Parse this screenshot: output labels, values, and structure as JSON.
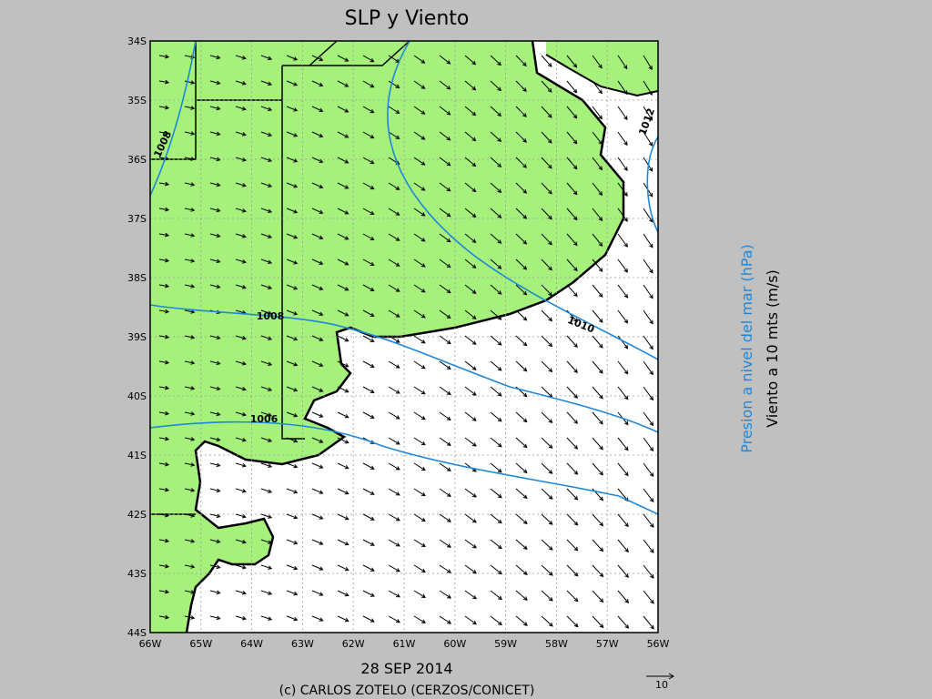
{
  "header": {
    "title": "SLP y Viento"
  },
  "map": {
    "lat_labels": [
      "34S",
      "35S",
      "36S",
      "37S",
      "38S",
      "39S",
      "40S",
      "41S",
      "42S",
      "43S",
      "44S"
    ],
    "lon_labels": [
      "66W",
      "65W",
      "64W",
      "63W",
      "62W",
      "61W",
      "60W",
      "59W",
      "58W",
      "57W",
      "56W"
    ],
    "contour_labels": [
      "1008",
      "1008",
      "1010",
      "1006",
      "1012"
    ]
  },
  "side_labels": {
    "pressure": "Presion a nivel del mar (hPa)",
    "wind": "Viento a 10 mts (m/s)"
  },
  "footer": {
    "date": "28 SEP 2014",
    "credit": "(c) CARLOS ZOTELO (CERZOS/CONICET)",
    "vector_scale": "10"
  }
}
